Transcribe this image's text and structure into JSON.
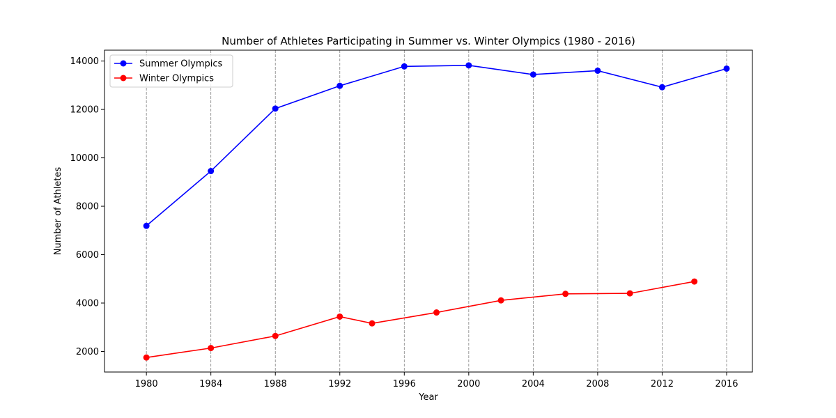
{
  "chart_data": {
    "type": "line",
    "title": "Number of Athletes Participating in Summer vs. Winter Olympics (1980 - 2016)",
    "xlabel": "Year",
    "ylabel": "Number of Athletes",
    "xlim": [
      1977.4,
      2017.6
    ],
    "ylim": [
      1150,
      14450
    ],
    "xticks": [
      1980,
      1984,
      1988,
      1992,
      1996,
      2000,
      2004,
      2008,
      2012,
      2016
    ],
    "yticks": [
      2000,
      4000,
      6000,
      8000,
      10000,
      12000,
      14000
    ],
    "grid": "vertical dashed",
    "legend_position": "top-left",
    "series": [
      {
        "name": "Summer Olympics",
        "color": "#0000ff",
        "x": [
          1980,
          1984,
          1988,
          1992,
          1996,
          2000,
          2004,
          2008,
          2012,
          2016
        ],
        "values": [
          7191,
          9454,
          12037,
          12977,
          13780,
          13821,
          13443,
          13602,
          12920,
          13688
        ]
      },
      {
        "name": "Winter Olympics",
        "color": "#ff0000",
        "x": [
          1980,
          1984,
          1988,
          1992,
          1994,
          1998,
          2002,
          2006,
          2010,
          2014
        ],
        "values": [
          1750,
          2140,
          2640,
          3440,
          3160,
          3610,
          4110,
          4380,
          4400,
          4890
        ]
      }
    ]
  }
}
